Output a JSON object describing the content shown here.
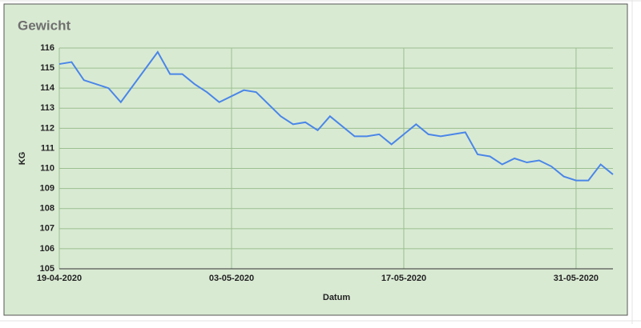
{
  "chart_data": {
    "type": "line",
    "title": "Gewicht",
    "x_label": "Datum",
    "y_label": "KG",
    "x": [
      "19-04-2020",
      "20-04-2020",
      "21-04-2020",
      "23-04-2020",
      "24-04-2020",
      "27-04-2020",
      "28-04-2020",
      "29-04-2020",
      "30-04-2020",
      "01-05-2020",
      "02-05-2020",
      "04-05-2020",
      "05-05-2020",
      "07-05-2020",
      "08-05-2020",
      "09-05-2020",
      "10-05-2020",
      "11-05-2020",
      "13-05-2020",
      "14-05-2020",
      "15-05-2020",
      "16-05-2020",
      "18-05-2020",
      "19-05-2020",
      "20-05-2020",
      "22-05-2020",
      "23-05-2020",
      "24-05-2020",
      "25-05-2020",
      "26-05-2020",
      "27-05-2020",
      "28-05-2020",
      "29-05-2020",
      "30-05-2020",
      "31-05-2020",
      "01-06-2020",
      "02-06-2020",
      "03-06-2020"
    ],
    "series": [
      {
        "color": "#4a86e8",
        "values": [
          115.2,
          115.3,
          114.4,
          114.0,
          113.3,
          115.8,
          114.7,
          114.7,
          114.2,
          113.8,
          113.3,
          113.9,
          113.8,
          112.6,
          112.2,
          112.3,
          111.9,
          112.6,
          111.6,
          111.6,
          111.7,
          111.2,
          112.2,
          111.7,
          111.6,
          111.8,
          110.7,
          110.6,
          110.2,
          110.5,
          110.3,
          110.4,
          110.1,
          109.6,
          109.4,
          109.4,
          110.2,
          109.7
        ]
      }
    ],
    "xlim": [
      "19-04-2020",
      "03-06-2020"
    ],
    "xticks": [
      "19-04-2020",
      "03-05-2020",
      "17-05-2020",
      "31-05-2020"
    ],
    "ylim": [
      105,
      116
    ],
    "yticks": [
      105,
      106,
      107,
      108,
      109,
      110,
      111,
      112,
      113,
      114,
      115,
      116
    ],
    "grid": true
  }
}
